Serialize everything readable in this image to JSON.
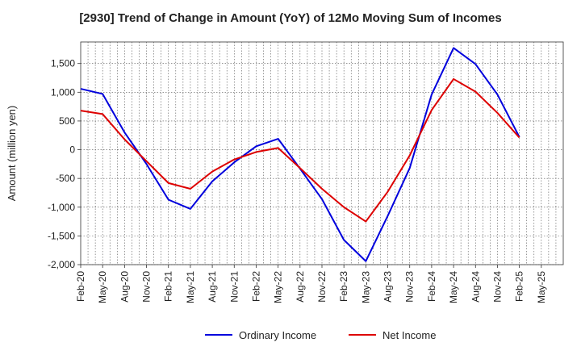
{
  "chart_data": {
    "type": "line",
    "title": "[2930]  Trend of Change in Amount (YoY) of 12Mo Moving Sum of Incomes",
    "ylabel": "Amount (million yen)",
    "xlabel": "",
    "ylim": [
      -2000,
      1875
    ],
    "yticks": [
      -2000,
      -1500,
      -1000,
      -500,
      0,
      500,
      1000,
      1500
    ],
    "ytick_labels": [
      "-2,000",
      "-1,500",
      "-1,000",
      "-500",
      "0",
      "500",
      "1,000",
      "1,500"
    ],
    "xtick_labels": [
      "Feb-20",
      "May-20",
      "Aug-20",
      "Nov-20",
      "Feb-21",
      "May-21",
      "Aug-21",
      "Nov-21",
      "Feb-22",
      "May-22",
      "Aug-22",
      "Nov-22",
      "Feb-23",
      "May-23",
      "Aug-23",
      "Nov-23",
      "Feb-24",
      "May-24",
      "Aug-24",
      "Nov-24",
      "Feb-25",
      "May-25"
    ],
    "grid": true,
    "legend_position": "bottom",
    "series": [
      {
        "name": "Ordinary Income",
        "color": "#0000dd",
        "values": [
          1060,
          970,
          300,
          -250,
          -870,
          -1030,
          -550,
          -220,
          60,
          190,
          -330,
          -860,
          -1570,
          -1940,
          -1150,
          -320,
          960,
          1770,
          1490,
          960,
          220
        ]
      },
      {
        "name": "Net Income",
        "color": "#dd0000",
        "values": [
          680,
          620,
          180,
          -200,
          -580,
          -680,
          -380,
          -170,
          -40,
          30,
          -320,
          -680,
          -1000,
          -1250,
          -730,
          -100,
          690,
          1230,
          1010,
          640,
          210
        ]
      }
    ]
  }
}
